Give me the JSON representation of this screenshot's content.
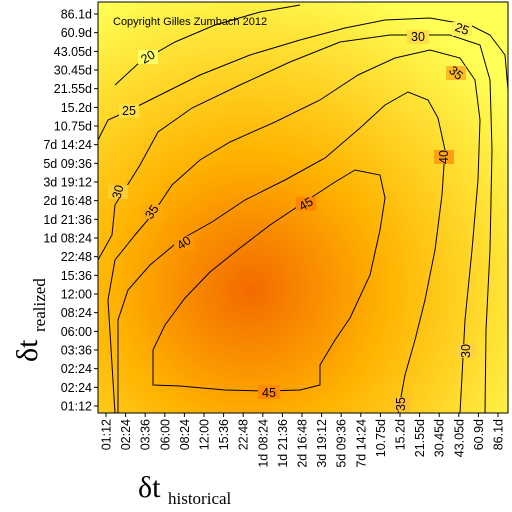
{
  "chart_data": {
    "type": "heatmap",
    "title": "",
    "annotation": "Copyright Gilles Zumbach 2012",
    "xlabel": {
      "symbol": "δt",
      "subscript": "historical"
    },
    "ylabel": {
      "symbol": "δt",
      "subscript": "realized"
    },
    "x_ticks": [
      "01:12",
      "02:24",
      "03:36",
      "06:00",
      "08:24",
      "12:00",
      "15:36",
      "22:48",
      "1d 08:24",
      "1d 21:36",
      "2d 16:48",
      "3d 19:12",
      "5d 09:36",
      "7d 14:24",
      "10.75d",
      "15.2d",
      "21.55d",
      "30.45d",
      "43.05d",
      "60.9d",
      "86.1d"
    ],
    "y_ticks": [
      "01:12",
      "02:24",
      "02:24",
      "03:36",
      "06:00",
      "08:24",
      "12:00",
      "15:36",
      "22:48",
      "1d 08:24",
      "1d 21:36",
      "2d 16:48",
      "3d 19:12",
      "5d 09:36",
      "7d 14:24",
      "10.75d",
      "15.2d",
      "21.55d",
      "30.45d",
      "43.05d",
      "60.9d",
      "86.1d"
    ],
    "contour_levels": [
      20,
      25,
      30,
      35,
      40,
      45
    ],
    "colorscale": {
      "low": "#ffff55",
      "mid": "#ffb200",
      "high": "#f36a00"
    }
  }
}
